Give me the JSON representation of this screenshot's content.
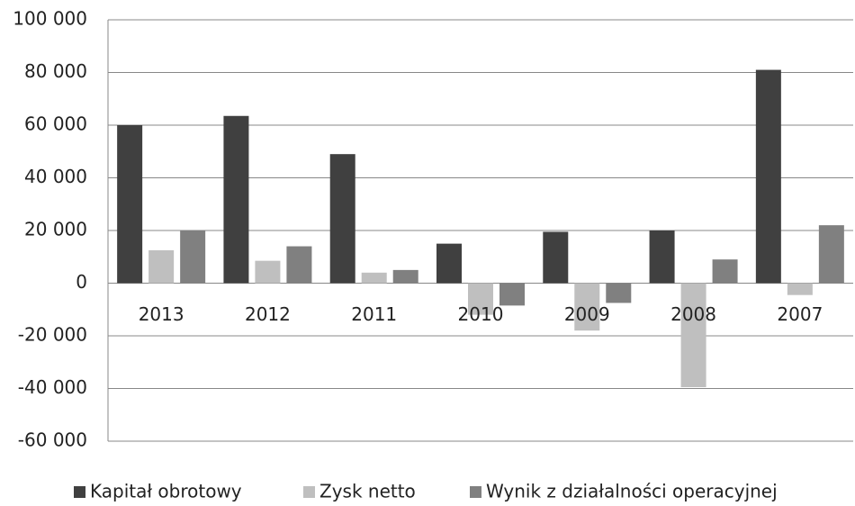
{
  "chart_data": {
    "type": "bar",
    "categories": [
      "2013",
      "2012",
      "2011",
      "2010",
      "2009",
      "2008",
      "2007"
    ],
    "series": [
      {
        "name": "Kapitał obrotowy",
        "color": "#404040",
        "values": [
          60000,
          63500,
          49000,
          15000,
          19500,
          20000,
          81000
        ]
      },
      {
        "name": "Zysk netto",
        "color": "#bfbfbf",
        "values": [
          12500,
          8500,
          4000,
          -12000,
          -18000,
          -39500,
          -4500
        ]
      },
      {
        "name": "Wynik z działalności operacyjnej",
        "color": "#808080",
        "values": [
          20000,
          14000,
          5000,
          -8500,
          -7500,
          9000,
          22000
        ]
      }
    ],
    "ylim": [
      -60000,
      100000
    ],
    "yticks": [
      {
        "value": -60000,
        "label": "-60 000"
      },
      {
        "value": -40000,
        "label": "-40 000"
      },
      {
        "value": -20000,
        "label": "-20 000"
      },
      0,
      {
        "value": 20000,
        "label": "20 000"
      },
      {
        "value": 40000,
        "label": "40 000"
      },
      {
        "value": 60000,
        "label": "60 000"
      },
      {
        "value": 80000,
        "label": "80 000"
      },
      {
        "value": 100000,
        "label": "100 000"
      }
    ],
    "grid": true,
    "legend": "bottom"
  }
}
